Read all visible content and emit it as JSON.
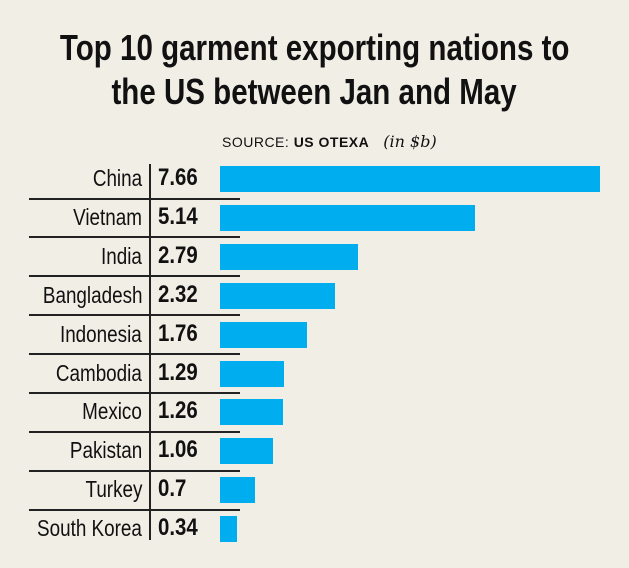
{
  "chart_data": {
    "type": "bar",
    "orientation": "horizontal",
    "title": "Top 10 garment exporting nations to the US between Jan and May",
    "title_lines": [
      "Top 10 garment exporting nations to",
      "the US between Jan and May"
    ],
    "source_prefix": "SOURCE:",
    "source_name": "US OTEXA",
    "unit": "(in $b)",
    "categories": [
      "China",
      "Vietnam",
      "India",
      "Bangladesh",
      "Indonesia",
      "Cambodia",
      "Mexico",
      "Pakistan",
      "Turkey",
      "South Korea"
    ],
    "values": [
      7.66,
      5.14,
      2.79,
      2.32,
      1.76,
      1.29,
      1.26,
      1.06,
      0.7,
      0.34
    ],
    "value_labels": [
      "7.66",
      "5.14",
      "2.79",
      "2.32",
      "1.76",
      "1.29",
      "1.26",
      "1.06",
      "0.7",
      "0.34"
    ],
    "xlim": [
      0,
      7.66
    ],
    "grid": false,
    "bar_color": "#00aeef"
  }
}
